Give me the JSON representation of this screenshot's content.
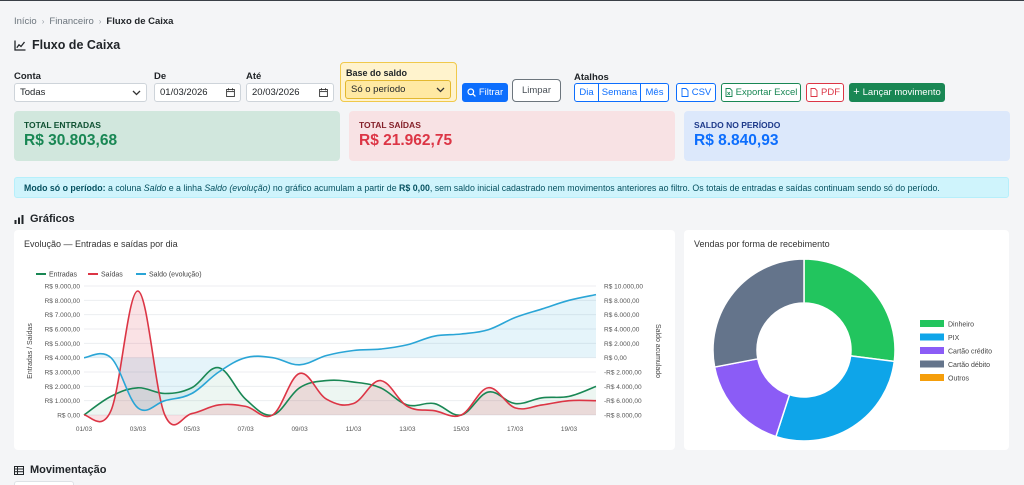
{
  "breadcrumb": [
    "Início",
    "Financeiro",
    "Fluxo de Caixa"
  ],
  "page_title": "Fluxo de Caixa",
  "filters": {
    "conta": {
      "label": "Conta",
      "value": "Todas"
    },
    "de": {
      "label": "De",
      "value": "01/03/2026"
    },
    "ate": {
      "label": "Até",
      "value": "20/03/2026"
    },
    "base": {
      "label": "Base do saldo",
      "value": "Só o período"
    },
    "filtrar": "Filtrar",
    "limpar": "Limpar",
    "atalhos": {
      "label": "Atalhos",
      "dia": "Dia",
      "semana": "Semana",
      "mes": "Mês"
    },
    "csv": "CSV",
    "excel": "Exportar Excel",
    "pdf": "PDF",
    "lancar": "Lançar movimento"
  },
  "summary": {
    "entradas": {
      "label": "TOTAL ENTRADAS",
      "value": "R$ 30.803,68",
      "color": "#198754"
    },
    "saidas": {
      "label": "TOTAL SAÍDAS",
      "value": "R$ 21.962,75",
      "color": "#dc3545"
    },
    "saldo": {
      "label": "SALDO NO PERÍODO",
      "value": "R$ 8.840,93",
      "color": "#0d6efd"
    }
  },
  "alert": {
    "t1": "Modo só o período:",
    "t2": " a coluna ",
    "t3": "Saldo",
    "t4": " e a linha ",
    "t5": "Saldo (evolução)",
    "t6": " no gráfico acumulam a partir de ",
    "t7": "R$ 0,00",
    "t8": ", sem saldo inicial cadastrado nem movimentos anteriores ao filtro. Os totais de entradas e saídas continuam sendo só do período."
  },
  "sections": {
    "graficos": "Gráficos",
    "movimentacao": "Movimentação"
  },
  "chart_data": [
    {
      "type": "line",
      "title": "Evolução — Entradas e saídas por dia",
      "ylabel": "Entradas / Saídas",
      "y2label": "Saldo acumulado",
      "legend": "top-left",
      "categories": [
        "01/03",
        "02/03",
        "03/03",
        "04/03",
        "05/03",
        "06/03",
        "07/03",
        "08/03",
        "09/03",
        "10/03",
        "11/03",
        "12/03",
        "13/03",
        "14/03",
        "15/03",
        "16/03",
        "17/03",
        "18/03",
        "19/03",
        "20/03"
      ],
      "xticks": [
        "01/03",
        "03/03",
        "05/03",
        "07/03",
        "09/03",
        "11/03",
        "13/03",
        "15/03",
        "17/03",
        "19/03"
      ],
      "ylim": [
        0,
        9000
      ],
      "yticks": [
        "R$ 0,00",
        "R$ 1.000,00",
        "R$ 2.000,00",
        "R$ 3.000,00",
        "R$ 4.000,00",
        "R$ 5.000,00",
        "R$ 6.000,00",
        "R$ 7.000,00",
        "R$ 8.000,00",
        "R$ 9.000,00"
      ],
      "y2lim": [
        -8000,
        10000
      ],
      "y2ticks": [
        "-R$ 8.000,00",
        "-R$ 6.000,00",
        "-R$ 4.000,00",
        "-R$ 2.000,00",
        "R$ 0,00",
        "R$ 2.000,00",
        "R$ 4.000,00",
        "R$ 6.000,00",
        "R$ 8.000,00",
        "R$ 10.000,00"
      ],
      "series": [
        {
          "name": "Entradas",
          "axis": "left",
          "color": "#198754",
          "values": [
            0,
            1300,
            1900,
            1500,
            1900,
            3300,
            1100,
            0,
            1900,
            2400,
            2300,
            1900,
            700,
            800,
            0,
            1600,
            800,
            1200,
            1300,
            2000
          ]
        },
        {
          "name": "Saídas",
          "axis": "left",
          "color": "#dc3545",
          "values": [
            0,
            300,
            8650,
            0,
            100,
            700,
            600,
            0,
            2900,
            1100,
            800,
            2400,
            600,
            300,
            0,
            1900,
            500,
            700,
            1000,
            1000
          ]
        },
        {
          "name": "Saldo (evolução)",
          "axis": "right",
          "color": "#2aa5d6",
          "values": [
            0,
            0,
            -7000,
            -6000,
            -5000,
            -2000,
            0,
            0,
            -1000,
            300,
            1000,
            1200,
            1800,
            3000,
            3300,
            3900,
            5600,
            6800,
            8000,
            8800
          ]
        }
      ]
    },
    {
      "type": "pie",
      "title": "Vendas por forma de recebimento",
      "legend": "right",
      "categories": [
        "Dinheiro",
        "PIX",
        "Cartão crédito",
        "Cartão débito",
        "Outros"
      ],
      "values": [
        27,
        28,
        17,
        28,
        0
      ],
      "colors": [
        "#22c55e",
        "#0ea5e9",
        "#8b5cf6",
        "#64748b",
        "#f59e0b"
      ]
    }
  ]
}
